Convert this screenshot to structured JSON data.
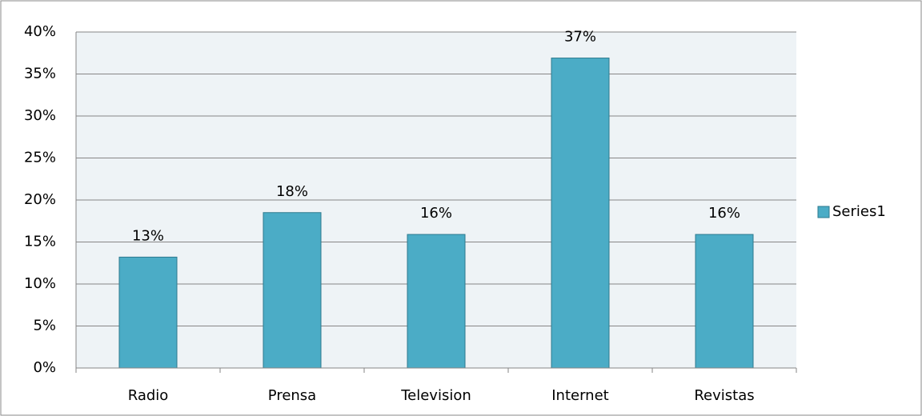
{
  "chart_data": {
    "type": "bar",
    "categories": [
      "Radio",
      "Prensa",
      "Television",
      "Internet",
      "Revistas"
    ],
    "series": [
      {
        "name": "Series1",
        "color": "#4bacc6",
        "values": [
          13.2,
          18.5,
          15.9,
          36.9,
          15.9
        ],
        "value_labels": [
          "13%",
          "18%",
          "16%",
          "37%",
          "16%"
        ]
      }
    ],
    "ylim": [
      0,
      40
    ],
    "yticks": [
      {
        "value": 0,
        "label": "0%"
      },
      {
        "value": 5,
        "label": "5%"
      },
      {
        "value": 10,
        "label": "10%"
      },
      {
        "value": 15,
        "label": "15%"
      },
      {
        "value": 20,
        "label": "20%"
      },
      {
        "value": 25,
        "label": "25%"
      },
      {
        "value": 30,
        "label": "30%"
      },
      {
        "value": 35,
        "label": "35%"
      },
      {
        "value": 40,
        "label": "40%"
      }
    ],
    "grid": true,
    "legend": "right"
  }
}
